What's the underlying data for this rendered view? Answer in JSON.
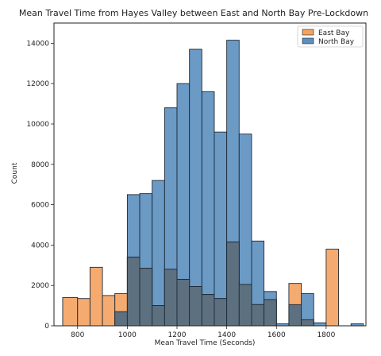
{
  "chart_data": {
    "type": "bar",
    "title": "Mean Travel Time from Hayes Valley between East and North Bay Pre-Lockdown",
    "xlabel": "Mean Travel Time (Seconds)",
    "ylabel": "Count",
    "xlim": [
      705,
      1960
    ],
    "ylim": [
      0,
      15000
    ],
    "xticks": [
      800,
      1000,
      1200,
      1400,
      1600,
      1800
    ],
    "yticks": [
      0,
      2000,
      4000,
      6000,
      8000,
      10000,
      12000,
      14000
    ],
    "legend_position": "top-right",
    "grid": false,
    "series": [
      {
        "name": "North Bay",
        "color": "#5b8fbf",
        "bins": [
          {
            "x0": 950,
            "x1": 1000,
            "value": 700
          },
          {
            "x0": 1000,
            "x1": 1050,
            "value": 6500
          },
          {
            "x0": 1050,
            "x1": 1100,
            "value": 6550
          },
          {
            "x0": 1100,
            "x1": 1150,
            "value": 7200
          },
          {
            "x0": 1150,
            "x1": 1200,
            "value": 10800
          },
          {
            "x0": 1200,
            "x1": 1250,
            "value": 12000
          },
          {
            "x0": 1250,
            "x1": 1300,
            "value": 13700
          },
          {
            "x0": 1300,
            "x1": 1350,
            "value": 11600
          },
          {
            "x0": 1350,
            "x1": 1400,
            "value": 9600
          },
          {
            "x0": 1400,
            "x1": 1450,
            "value": 14150
          },
          {
            "x0": 1450,
            "x1": 1500,
            "value": 9500
          },
          {
            "x0": 1500,
            "x1": 1550,
            "value": 4200
          },
          {
            "x0": 1550,
            "x1": 1600,
            "value": 1700
          },
          {
            "x0": 1600,
            "x1": 1650,
            "value": 100
          },
          {
            "x0": 1650,
            "x1": 1700,
            "value": 1050
          },
          {
            "x0": 1700,
            "x1": 1750,
            "value": 1600
          },
          {
            "x0": 1750,
            "x1": 1800,
            "value": 150
          },
          {
            "x0": 1900,
            "x1": 1950,
            "value": 100
          }
        ]
      },
      {
        "name": "East Bay",
        "color": "#f4a261",
        "bins": [
          {
            "x0": 740,
            "x1": 800,
            "value": 1400
          },
          {
            "x0": 800,
            "x1": 850,
            "value": 1350
          },
          {
            "x0": 850,
            "x1": 900,
            "value": 2900
          },
          {
            "x0": 900,
            "x1": 950,
            "value": 1500
          },
          {
            "x0": 950,
            "x1": 1000,
            "value": 1600
          },
          {
            "x0": 1000,
            "x1": 1050,
            "value": 3400
          },
          {
            "x0": 1050,
            "x1": 1100,
            "value": 2850
          },
          {
            "x0": 1100,
            "x1": 1150,
            "value": 1000
          },
          {
            "x0": 1150,
            "x1": 1200,
            "value": 2800
          },
          {
            "x0": 1200,
            "x1": 1250,
            "value": 2300
          },
          {
            "x0": 1250,
            "x1": 1300,
            "value": 1950
          },
          {
            "x0": 1300,
            "x1": 1350,
            "value": 1550
          },
          {
            "x0": 1350,
            "x1": 1400,
            "value": 1350
          },
          {
            "x0": 1400,
            "x1": 1450,
            "value": 4150
          },
          {
            "x0": 1450,
            "x1": 1500,
            "value": 2050
          },
          {
            "x0": 1500,
            "x1": 1550,
            "value": 1050
          },
          {
            "x0": 1550,
            "x1": 1600,
            "value": 1300
          },
          {
            "x0": 1650,
            "x1": 1700,
            "value": 2100
          },
          {
            "x0": 1700,
            "x1": 1750,
            "value": 300
          },
          {
            "x0": 1800,
            "x1": 1850,
            "value": 3800
          }
        ]
      }
    ],
    "overlap_color": "#5d7080"
  }
}
